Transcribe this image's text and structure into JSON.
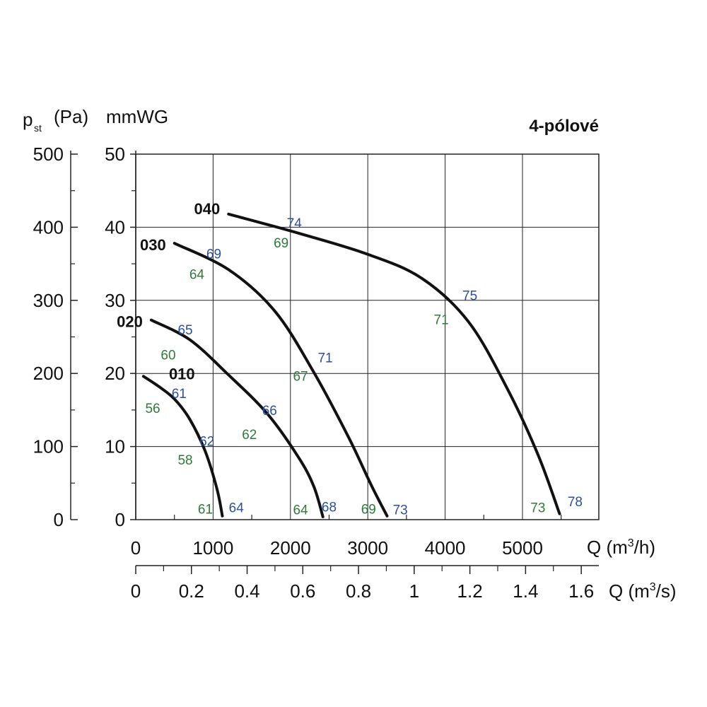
{
  "header": {
    "pa_label_p": "p",
    "pa_label_sub": "st",
    "pa_label_rest": "(Pa)",
    "mmwg_label": "mmWG",
    "title": "4-pólové"
  },
  "axis_labels": {
    "q_m3h": "Q (m",
    "q_m3h_sup": "3",
    "q_m3h_end": "/h)",
    "q_m3s": "Q (m",
    "q_m3s_sup": "3",
    "q_m3s_end": "/s)"
  },
  "colors": {
    "curve": "#111111",
    "grid": "#222222",
    "blue_label": "#2b4fa0",
    "green_label": "#2e7a3a"
  },
  "chart_data": {
    "type": "line",
    "title": "4-pólové",
    "xlabel": "Q (m3/h)",
    "ylabel": "p st (Pa)",
    "xlim": [
      0,
      6000
    ],
    "ylim_mmwg": [
      0,
      50
    ],
    "ylim_pa": [
      0,
      500
    ],
    "x_ticks_m3h": [
      "0",
      "1000",
      "2000",
      "3000",
      "4000",
      "5000"
    ],
    "x_ticks_m3s": [
      "0",
      "0.2",
      "0.4",
      "0.6",
      "0.8",
      "1",
      "1.2",
      "1.4",
      "1.6"
    ],
    "y_ticks_mmwg": [
      "0",
      "10",
      "20",
      "30",
      "40",
      "50"
    ],
    "y_ticks_pa": [
      "0",
      "100",
      "200",
      "300",
      "400",
      "500"
    ],
    "grid": true,
    "series": [
      {
        "name": "010",
        "points": [
          [
            100,
            19.6
          ],
          [
            300,
            18.2
          ],
          [
            500,
            16.5
          ],
          [
            700,
            13.7
          ],
          [
            900,
            9.3
          ],
          [
            1050,
            4.2
          ],
          [
            1120,
            0.5
          ]
        ],
        "labels": [
          {
            "text": "61",
            "x": 560,
            "y": 17.3,
            "color": "blue"
          },
          {
            "text": "56",
            "x": 220,
            "y": 15.3,
            "color": "green"
          },
          {
            "text": "62",
            "x": 920,
            "y": 10.8,
            "color": "blue"
          },
          {
            "text": "58",
            "x": 640,
            "y": 8.2,
            "color": "green"
          },
          {
            "text": "61",
            "x": 900,
            "y": 1.5,
            "color": "green"
          },
          {
            "text": "64",
            "x": 1300,
            "y": 1.7,
            "color": "blue"
          }
        ]
      },
      {
        "name": "020",
        "points": [
          [
            200,
            27.3
          ],
          [
            700,
            24.6
          ],
          [
            1200,
            19.8
          ],
          [
            1700,
            14.5
          ],
          [
            2100,
            8.6
          ],
          [
            2300,
            4.6
          ],
          [
            2420,
            0.4
          ]
        ],
        "labels": [
          {
            "text": "65",
            "x": 640,
            "y": 26.0,
            "color": "blue"
          },
          {
            "text": "60",
            "x": 420,
            "y": 22.6,
            "color": "green"
          },
          {
            "text": "66",
            "x": 1730,
            "y": 15.0,
            "color": "blue"
          },
          {
            "text": "62",
            "x": 1470,
            "y": 11.7,
            "color": "green"
          },
          {
            "text": "64",
            "x": 2130,
            "y": 1.4,
            "color": "green"
          },
          {
            "text": "68",
            "x": 2500,
            "y": 1.8,
            "color": "blue"
          }
        ]
      },
      {
        "name": "030",
        "points": [
          [
            500,
            37.8
          ],
          [
            1200,
            34.2
          ],
          [
            1800,
            28.5
          ],
          [
            2300,
            20.2
          ],
          [
            2750,
            11.3
          ],
          [
            3050,
            4.6
          ],
          [
            3250,
            0.5
          ]
        ],
        "labels": [
          {
            "text": "69",
            "x": 1010,
            "y": 36.4,
            "color": "blue"
          },
          {
            "text": "64",
            "x": 790,
            "y": 33.6,
            "color": "green"
          },
          {
            "text": "71",
            "x": 2450,
            "y": 22.2,
            "color": "blue"
          },
          {
            "text": "67",
            "x": 2130,
            "y": 19.7,
            "color": "green"
          },
          {
            "text": "69",
            "x": 3010,
            "y": 1.5,
            "color": "green"
          },
          {
            "text": "73",
            "x": 3420,
            "y": 1.4,
            "color": "blue"
          }
        ]
      },
      {
        "name": "040",
        "points": [
          [
            1200,
            41.8
          ],
          [
            2100,
            39.2
          ],
          [
            3000,
            36.3
          ],
          [
            3700,
            33.0
          ],
          [
            4300,
            27.1
          ],
          [
            4800,
            18.0
          ],
          [
            5200,
            8.9
          ],
          [
            5480,
            0.8
          ]
        ],
        "labels": [
          {
            "text": "74",
            "x": 2050,
            "y": 40.6,
            "color": "blue"
          },
          {
            "text": "69",
            "x": 1880,
            "y": 37.9,
            "color": "green"
          },
          {
            "text": "75",
            "x": 4320,
            "y": 30.7,
            "color": "blue"
          },
          {
            "text": "71",
            "x": 3950,
            "y": 27.4,
            "color": "green"
          },
          {
            "text": "73",
            "x": 5200,
            "y": 1.7,
            "color": "green"
          },
          {
            "text": "78",
            "x": 5680,
            "y": 2.5,
            "color": "blue"
          }
        ]
      }
    ]
  }
}
